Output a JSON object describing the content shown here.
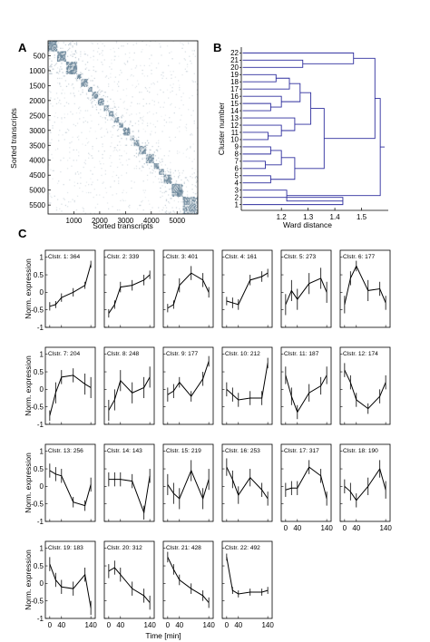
{
  "panels": [
    {
      "label": "A"
    },
    {
      "label": "B"
    },
    {
      "label": "C"
    }
  ],
  "chart_data": [
    {
      "type": "heatmap",
      "panel": "A",
      "xlabel": "Sorted transcripts",
      "ylabel": "Sorted transcripts",
      "xlim": [
        0,
        5800
      ],
      "ylim": [
        0,
        5800
      ],
      "x_ticks": [
        1000,
        2000,
        3000,
        4000,
        5000
      ],
      "y_ticks": [
        500,
        1000,
        1500,
        2000,
        2500,
        3000,
        3500,
        4000,
        4500,
        5000,
        5500
      ],
      "color": "#4e6e86",
      "diagonal_blocks": [
        {
          "start": 0,
          "end": 364
        },
        {
          "start": 364,
          "end": 703
        },
        {
          "start": 703,
          "end": 1104
        },
        {
          "start": 1104,
          "end": 1265
        },
        {
          "start": 1265,
          "end": 1538
        },
        {
          "start": 1538,
          "end": 1715
        },
        {
          "start": 1715,
          "end": 1919
        },
        {
          "start": 1919,
          "end": 2167
        },
        {
          "start": 2167,
          "end": 2344
        },
        {
          "start": 2344,
          "end": 2556
        },
        {
          "start": 2556,
          "end": 2743
        },
        {
          "start": 2743,
          "end": 2917
        },
        {
          "start": 2917,
          "end": 3173
        },
        {
          "start": 3173,
          "end": 3316
        },
        {
          "start": 3316,
          "end": 3535
        },
        {
          "start": 3535,
          "end": 3788
        },
        {
          "start": 3788,
          "end": 4105
        },
        {
          "start": 4105,
          "end": 4295
        },
        {
          "start": 4295,
          "end": 4478
        },
        {
          "start": 4478,
          "end": 4790
        },
        {
          "start": 4790,
          "end": 5218
        },
        {
          "start": 5218,
          "end": 5710
        }
      ]
    },
    {
      "type": "dendrogram",
      "panel": "B",
      "xlabel": "Ward distance",
      "ylabel": "Cluster number",
      "xlim": [
        1.05,
        1.6
      ],
      "x_ticks": [
        "1.2",
        "1.3",
        "1.4",
        "1.5"
      ],
      "leaf_order_bottom_to_top": [
        "1",
        "2",
        "3",
        "4",
        "5",
        "6",
        "7",
        "8",
        "9",
        "10",
        "11",
        "12",
        "13",
        "14",
        "15",
        "16",
        "17",
        "18",
        "19",
        "20",
        "21",
        "22"
      ],
      "line_color": "#2e2e9e",
      "merges": [
        {
          "id": "m1",
          "left": "4",
          "right": "5",
          "height": 1.16
        },
        {
          "id": "m2",
          "left": "6",
          "right": "7",
          "height": 1.14
        },
        {
          "id": "m3",
          "left": "8",
          "right": "9",
          "height": 1.16
        },
        {
          "id": "m4",
          "left": "m2",
          "right": "m3",
          "height": 1.2
        },
        {
          "id": "m5",
          "left": "m1",
          "right": "m4",
          "height": 1.25
        },
        {
          "id": "m6",
          "left": "10",
          "right": "11",
          "height": 1.15
        },
        {
          "id": "m7",
          "left": "m6",
          "right": "12",
          "height": 1.2
        },
        {
          "id": "m8",
          "left": "m7",
          "right": "13",
          "height": 1.25
        },
        {
          "id": "m9",
          "left": "14",
          "right": "15",
          "height": 1.16
        },
        {
          "id": "m10",
          "left": "m9",
          "right": "16",
          "height": 1.2
        },
        {
          "id": "m11",
          "left": "18",
          "right": "19",
          "height": 1.18
        },
        {
          "id": "m12",
          "left": "17",
          "right": "m11",
          "height": 1.23
        },
        {
          "id": "m13",
          "left": "m10",
          "right": "m12",
          "height": 1.27
        },
        {
          "id": "m14",
          "left": "m8",
          "right": "m13",
          "height": 1.31
        },
        {
          "id": "m15",
          "left": "m5",
          "right": "m14",
          "height": 1.36
        },
        {
          "id": "m16",
          "left": "20",
          "right": "21",
          "height": 1.28
        },
        {
          "id": "m17",
          "left": "m16",
          "right": "22",
          "height": 1.47
        },
        {
          "id": "m18",
          "left": "1",
          "right": "2",
          "height": 1.43
        },
        {
          "id": "m19",
          "left": "m18",
          "right": "3",
          "height": 1.22
        },
        {
          "id": "m20",
          "left": "m15",
          "right": "m17",
          "height": 1.55
        },
        {
          "id": "m21",
          "left": "m19",
          "right": "m20",
          "height": 1.57
        }
      ]
    },
    {
      "type": "line",
      "panel": "C",
      "xlabel": "Time [min]",
      "ylabel": "Norm. expression",
      "x": [
        0,
        20,
        40,
        80,
        120,
        140
      ],
      "xlim": [
        -15,
        155
      ],
      "ylim": [
        -1,
        1.2
      ],
      "x_ticks": [
        0,
        40,
        140
      ],
      "y_ticks": [
        -1,
        -0.5,
        0,
        0.5,
        1
      ],
      "y_tick_labels": [
        "-1",
        "-0.5",
        "0",
        "0.5",
        "1"
      ],
      "series": [
        {
          "name": "Clstr. 1: 364",
          "values": [
            -0.4,
            -0.35,
            -0.15,
            0.0,
            0.2,
            0.8
          ],
          "err": [
            0.12,
            0.1,
            0.12,
            0.12,
            0.1,
            0.1
          ]
        },
        {
          "name": "Clstr. 2: 339",
          "values": [
            -0.6,
            -0.35,
            0.15,
            0.2,
            0.35,
            0.5
          ],
          "err": [
            0.12,
            0.12,
            0.15,
            0.15,
            0.15,
            0.12
          ]
        },
        {
          "name": "Clstr. 3: 401",
          "values": [
            -0.45,
            -0.35,
            0.2,
            0.55,
            0.35,
            0.0
          ],
          "err": [
            0.12,
            0.12,
            0.2,
            0.2,
            0.2,
            0.15
          ]
        },
        {
          "name": "Clstr. 4: 161",
          "values": [
            -0.25,
            -0.3,
            -0.35,
            0.35,
            0.45,
            0.55
          ],
          "err": [
            0.12,
            0.15,
            0.15,
            0.15,
            0.15,
            0.12
          ]
        },
        {
          "name": "Clstr. 5: 273",
          "values": [
            -0.35,
            0.05,
            -0.2,
            0.25,
            0.4,
            0.0
          ],
          "err": [
            0.3,
            0.3,
            0.3,
            0.3,
            0.3,
            0.3
          ]
        },
        {
          "name": "Clstr. 6: 177",
          "values": [
            -0.35,
            0.4,
            0.75,
            0.05,
            0.1,
            -0.3
          ],
          "err": [
            0.25,
            0.2,
            0.15,
            0.3,
            0.2,
            0.2
          ]
        },
        {
          "name": "Clstr. 7: 204",
          "values": [
            -0.75,
            -0.1,
            0.35,
            0.4,
            0.15,
            0.05
          ],
          "err": [
            0.15,
            0.3,
            0.2,
            0.2,
            0.3,
            0.3
          ]
        },
        {
          "name": "Clstr. 8: 248",
          "values": [
            -0.6,
            -0.3,
            0.25,
            -0.1,
            0.05,
            0.35
          ],
          "err": [
            0.3,
            0.3,
            0.3,
            0.3,
            0.3,
            0.3
          ]
        },
        {
          "name": "Clstr. 9: 177",
          "values": [
            -0.15,
            -0.05,
            0.2,
            -0.2,
            0.3,
            0.8
          ],
          "err": [
            0.2,
            0.2,
            0.15,
            0.15,
            0.2,
            0.15
          ]
        },
        {
          "name": "Clstr. 10: 212",
          "values": [
            0.0,
            -0.15,
            -0.3,
            -0.25,
            -0.25,
            0.75
          ],
          "err": [
            0.2,
            0.2,
            0.2,
            0.2,
            0.2,
            0.15
          ]
        },
        {
          "name": "Clstr. 11: 187",
          "values": [
            0.4,
            -0.2,
            -0.65,
            -0.1,
            0.1,
            0.4
          ],
          "err": [
            0.25,
            0.25,
            0.2,
            0.25,
            0.25,
            0.25
          ]
        },
        {
          "name": "Clstr. 12: 174",
          "values": [
            0.55,
            0.2,
            -0.3,
            -0.55,
            -0.2,
            0.2
          ],
          "err": [
            0.2,
            0.2,
            0.2,
            0.15,
            0.2,
            0.2
          ]
        },
        {
          "name": "Clstr. 13: 256",
          "values": [
            0.45,
            0.35,
            0.3,
            -0.45,
            -0.55,
            0.05
          ],
          "err": [
            0.2,
            0.2,
            0.2,
            0.15,
            0.15,
            0.2
          ]
        },
        {
          "name": "Clstr. 14: 143",
          "values": [
            0.2,
            0.2,
            0.2,
            0.15,
            -0.75,
            0.3
          ],
          "err": [
            0.2,
            0.2,
            0.2,
            0.2,
            0.2,
            0.2
          ]
        },
        {
          "name": "Clstr. 15: 219",
          "values": [
            0.05,
            -0.2,
            -0.35,
            0.45,
            -0.35,
            0.2
          ],
          "err": [
            0.3,
            0.3,
            0.3,
            0.3,
            0.3,
            0.3
          ]
        },
        {
          "name": "Clstr. 16: 253",
          "values": [
            0.55,
            0.2,
            -0.25,
            0.25,
            -0.1,
            -0.35
          ],
          "err": [
            0.25,
            0.25,
            0.25,
            0.25,
            0.2,
            0.2
          ]
        },
        {
          "name": "Clstr. 17: 317",
          "values": [
            -0.1,
            -0.05,
            -0.05,
            0.55,
            0.3,
            -0.35
          ],
          "err": [
            0.2,
            0.2,
            0.2,
            0.2,
            0.2,
            0.2
          ]
        },
        {
          "name": "Clstr. 18: 190",
          "values": [
            0.0,
            -0.15,
            -0.4,
            0.0,
            0.5,
            -0.1
          ],
          "err": [
            0.2,
            0.25,
            0.2,
            0.25,
            0.25,
            0.25
          ]
        },
        {
          "name": "Clstr. 19: 183",
          "values": [
            0.55,
            0.1,
            -0.1,
            -0.15,
            0.25,
            -0.7
          ],
          "err": [
            0.2,
            0.2,
            0.2,
            0.2,
            0.2,
            0.2
          ]
        },
        {
          "name": "Clstr. 20: 312",
          "values": [
            0.35,
            0.45,
            0.25,
            -0.15,
            -0.35,
            -0.55
          ],
          "err": [
            0.2,
            0.2,
            0.2,
            0.2,
            0.2,
            0.2
          ]
        },
        {
          "name": "Clstr. 21: 428",
          "values": [
            0.75,
            0.4,
            0.1,
            -0.15,
            -0.35,
            -0.55
          ],
          "err": [
            0.15,
            0.15,
            0.15,
            0.15,
            0.15,
            0.15
          ]
        },
        {
          "name": "Clstr. 22: 492",
          "values": [
            0.75,
            -0.2,
            -0.3,
            -0.25,
            -0.25,
            -0.2
          ],
          "err": [
            0.1,
            0.1,
            0.1,
            0.1,
            0.1,
            0.1
          ]
        }
      ]
    }
  ]
}
